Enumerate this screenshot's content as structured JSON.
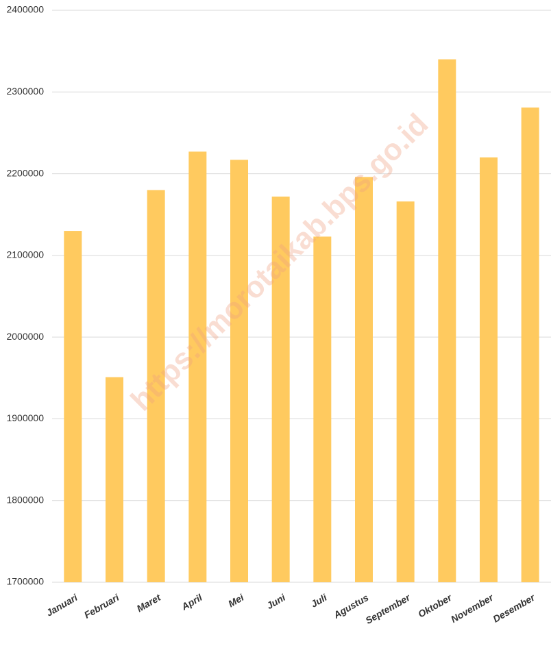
{
  "chart_data": {
    "type": "bar",
    "categories": [
      "Januari",
      "Februari",
      "Maret",
      "April",
      "Mei",
      "Juni",
      "Juli",
      "Agustus",
      "September",
      "Oktober",
      "November",
      "Desember"
    ],
    "values": [
      2130000,
      1951000,
      2180000,
      2227000,
      2217000,
      2172000,
      2123000,
      2196000,
      2166000,
      2340000,
      2220000,
      2281000
    ],
    "color": "#ffca5f",
    "ylim": [
      1700000,
      2400000
    ],
    "yticks": [
      1700000,
      1800000,
      1900000,
      2000000,
      2100000,
      2200000,
      2300000,
      2400000
    ],
    "grid": true,
    "watermark": "https://morotaikab.bps.go.id"
  }
}
